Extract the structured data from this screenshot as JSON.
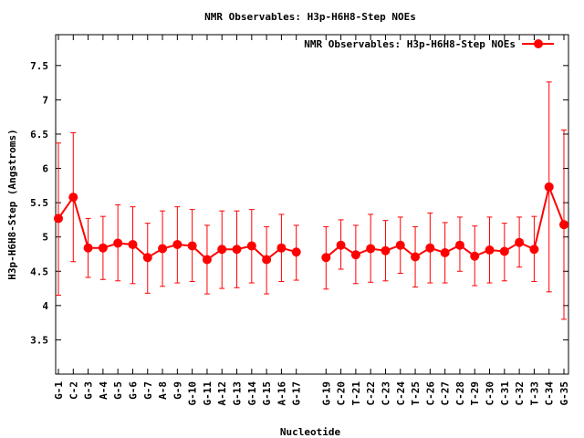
{
  "chart_data": {
    "type": "line",
    "title": "NMR Observables: H3p-H6H8-Step NOEs",
    "xlabel": "Nucleotide",
    "ylabel": "H3p-H6H8-Step (Angstroms)",
    "ylim": [
      3.0,
      7.95
    ],
    "yticks": [
      3.5,
      4,
      4.5,
      5,
      5.5,
      6,
      6.5,
      7,
      7.5
    ],
    "ytick_labels": [
      "3.5",
      "4",
      "4.5",
      "5",
      "5.5",
      "6",
      "6.5",
      "7",
      "7.5"
    ],
    "categories": [
      "G-1",
      "C-2",
      "G-3",
      "A-4",
      "G-5",
      "G-6",
      "G-7",
      "A-8",
      "G-9",
      "G-10",
      "G-11",
      "A-12",
      "G-13",
      "G-14",
      "G-15",
      "A-16",
      "G-17",
      "",
      "G-19",
      "C-20",
      "T-21",
      "C-22",
      "C-23",
      "C-24",
      "T-25",
      "C-26",
      "C-27",
      "C-28",
      "T-29",
      "C-30",
      "C-31",
      "C-32",
      "T-33",
      "C-34",
      "G-35"
    ],
    "legend_placement": "top-right",
    "grid": false,
    "series": [
      {
        "name": "NMR Observables: H3p-H6H8-Step NOEs",
        "color": "#ff0000",
        "marker": "circle",
        "values": [
          5.27,
          5.58,
          4.84,
          4.84,
          4.91,
          4.89,
          4.7,
          4.83,
          4.89,
          4.87,
          4.67,
          4.82,
          4.82,
          4.87,
          4.67,
          4.84,
          4.78,
          null,
          4.7,
          4.88,
          4.74,
          4.83,
          4.8,
          4.88,
          4.71,
          4.84,
          4.77,
          4.88,
          4.72,
          4.81,
          4.79,
          4.92,
          4.82,
          5.73,
          5.18
        ],
        "error_low": [
          4.15,
          4.64,
          4.41,
          4.38,
          4.36,
          4.32,
          4.18,
          4.28,
          4.33,
          4.35,
          4.17,
          4.25,
          4.26,
          4.33,
          4.17,
          4.35,
          4.37,
          null,
          4.24,
          4.53,
          4.32,
          4.34,
          4.36,
          4.47,
          4.27,
          4.33,
          4.33,
          4.5,
          4.29,
          4.33,
          4.36,
          4.56,
          4.35,
          4.2,
          3.8
        ],
        "error_high": [
          6.37,
          6.52,
          5.27,
          5.3,
          5.47,
          5.44,
          5.2,
          5.38,
          5.44,
          5.4,
          5.17,
          5.38,
          5.38,
          5.4,
          5.15,
          5.33,
          5.17,
          null,
          5.15,
          5.25,
          5.17,
          5.33,
          5.24,
          5.29,
          5.15,
          5.35,
          5.21,
          5.29,
          5.16,
          5.29,
          5.2,
          5.29,
          5.3,
          7.26,
          6.56
        ]
      }
    ]
  }
}
